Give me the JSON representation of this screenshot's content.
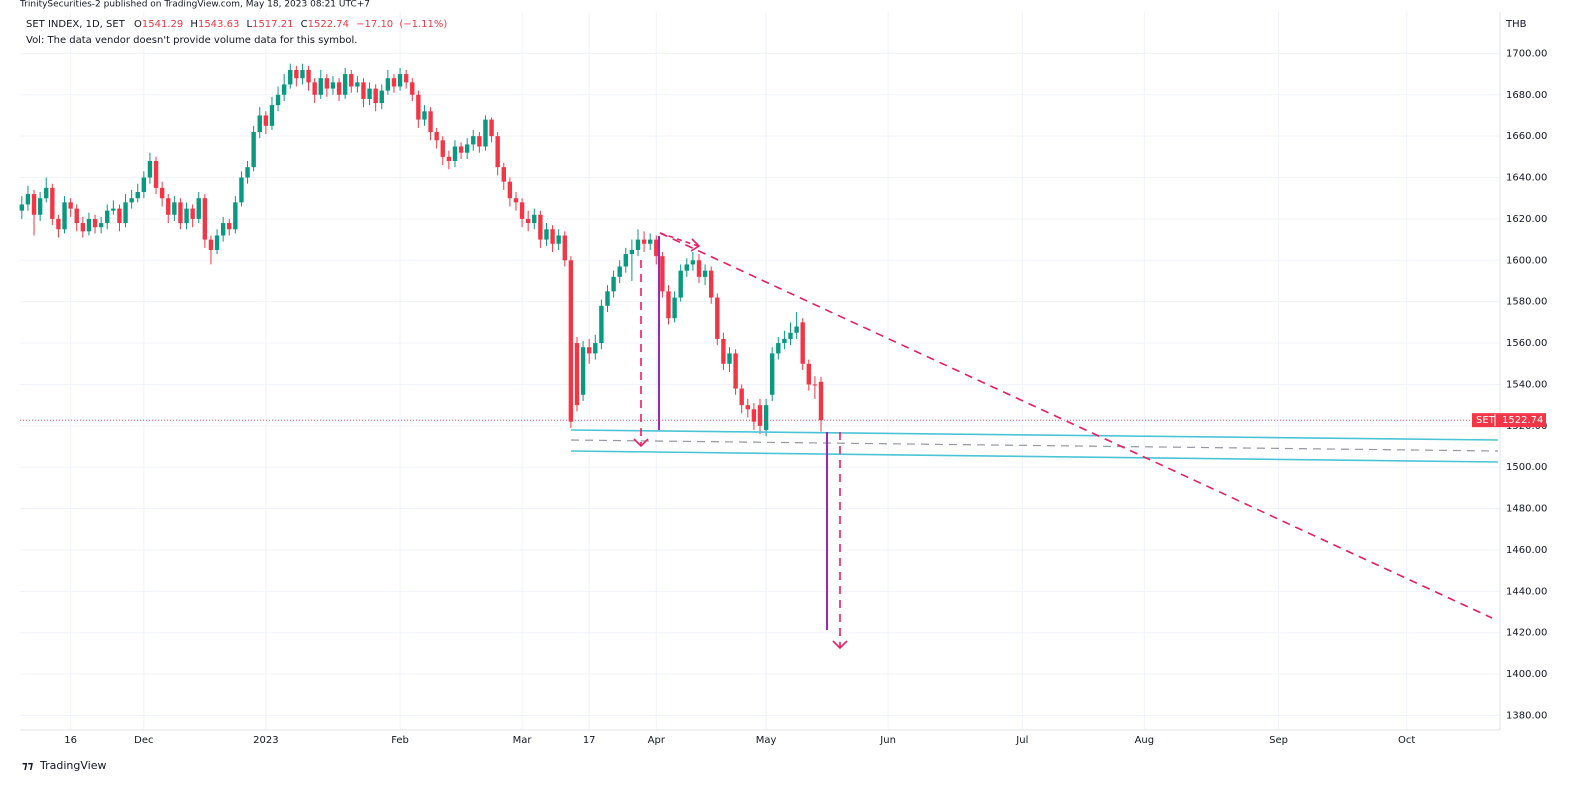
{
  "publisher": "TrinitySecurities-2 published on TradingView.com, May 18, 2023 08:21 UTC+7",
  "chart_data": {
    "type": "candlestick",
    "symbol": "SET INDEX, 1D, SET",
    "ohlc_letters": [
      "O",
      "H",
      "L",
      "C"
    ],
    "change": {
      "value": -17.1,
      "label": "−17.10"
    },
    "change_pct": {
      "value": -1.11,
      "label": "(−1.11%)"
    },
    "volume_note": "Vol: The data vendor doesn't provide volume data for this symbol.",
    "currency": "THB",
    "symbol_short": "SET",
    "up_color": "#089981",
    "down_color": "#f23645",
    "grid": true,
    "xlim": [
      -0.3,
      242.3
    ],
    "xticks": [
      {
        "value": 8,
        "label": "16"
      },
      {
        "value": 20,
        "label": "Dec"
      },
      {
        "value": 40,
        "label": "2023"
      },
      {
        "value": 62,
        "label": "Feb"
      },
      {
        "value": 82,
        "label": "Mar"
      },
      {
        "value": 93,
        "label": "17"
      },
      {
        "value": 104,
        "label": "Apr"
      },
      {
        "value": 122,
        "label": "May"
      },
      {
        "value": 142,
        "label": "Jun"
      },
      {
        "value": 164,
        "label": "Jul"
      },
      {
        "value": 184,
        "label": "Aug"
      },
      {
        "value": 206,
        "label": "Sep"
      },
      {
        "value": 227,
        "label": "Oct"
      }
    ],
    "ylim": [
      1373,
      1720
    ],
    "yticks": [
      {
        "value": 1380,
        "label": "1380.00"
      },
      {
        "value": 1400,
        "label": "1400.00"
      },
      {
        "value": 1420,
        "label": "1420.00"
      },
      {
        "value": 1440,
        "label": "1440.00"
      },
      {
        "value": 1460,
        "label": "1460.00"
      },
      {
        "value": 1480,
        "label": "1480.00"
      },
      {
        "value": 1500,
        "label": "1500.00"
      },
      {
        "value": 1520,
        "label": "1520.00"
      },
      {
        "value": 1540,
        "label": "1540.00"
      },
      {
        "value": 1560,
        "label": "1560.00"
      },
      {
        "value": 1580,
        "label": "1580.00"
      },
      {
        "value": 1600,
        "label": "1600.00"
      },
      {
        "value": 1620,
        "label": "1620.00"
      },
      {
        "value": 1640,
        "label": "1640.00"
      },
      {
        "value": 1660,
        "label": "1660.00"
      },
      {
        "value": 1680,
        "label": "1680.00"
      },
      {
        "value": 1700,
        "label": "1700.00"
      }
    ],
    "open": [
      1624,
      1627,
      1632,
      1622,
      1630,
      1635,
      1620,
      1615,
      1628,
      1625,
      1618,
      1614,
      1620,
      1616,
      1618,
      1624,
      1625,
      1618,
      1628,
      1630,
      1633,
      1640,
      1648,
      1635,
      1630,
      1622,
      1628,
      1618,
      1625,
      1620,
      1630,
      1610,
      1605,
      1612,
      1618,
      1615,
      1628,
      1640,
      1645,
      1662,
      1670,
      1665,
      1675,
      1680,
      1685,
      1692,
      1688,
      1692,
      1686,
      1680,
      1688,
      1683,
      1686,
      1680,
      1690,
      1684,
      1686,
      1678,
      1683,
      1676,
      1682,
      1688,
      1684,
      1690,
      1686,
      1680,
      1668,
      1672,
      1662,
      1658,
      1650,
      1648,
      1655,
      1652,
      1656,
      1660,
      1655,
      1668,
      1660,
      1645,
      1638,
      1630,
      1628,
      1620,
      1618,
      1622,
      1610,
      1615,
      1608,
      1612,
      1600,
      1560,
      1535,
      1558,
      1555,
      1560,
      1578,
      1585,
      1592,
      1597,
      1603,
      1605,
      1610,
      1608,
      1610,
      1602,
      1585,
      1572,
      1582,
      1595,
      1598,
      1600,
      1592,
      1595,
      1582,
      1562,
      1550,
      1555,
      1538,
      1530,
      1528,
      1530,
      1518,
      1535,
      1555,
      1560,
      1562,
      1565,
      1570,
      1550,
      1540,
      1541.29
    ],
    "high": [
      1631,
      1636,
      1634,
      1633,
      1640,
      1637,
      1622,
      1631,
      1630,
      1627,
      1621,
      1623,
      1622,
      1621,
      1627,
      1629,
      1627,
      1632,
      1634,
      1637,
      1643,
      1652,
      1650,
      1638,
      1632,
      1631,
      1630,
      1628,
      1627,
      1633,
      1632,
      1612,
      1615,
      1621,
      1620,
      1631,
      1643,
      1648,
      1665,
      1674,
      1672,
      1679,
      1684,
      1690,
      1695,
      1694,
      1695,
      1694,
      1688,
      1692,
      1690,
      1689,
      1688,
      1693,
      1692,
      1689,
      1688,
      1686,
      1685,
      1685,
      1692,
      1690,
      1693,
      1692,
      1688,
      1682,
      1675,
      1674,
      1664,
      1660,
      1653,
      1658,
      1657,
      1659,
      1663,
      1662,
      1670,
      1669,
      1662,
      1647,
      1640,
      1633,
      1630,
      1624,
      1625,
      1624,
      1618,
      1617,
      1615,
      1614,
      1602,
      1563,
      1561,
      1562,
      1564,
      1581,
      1588,
      1595,
      1600,
      1606,
      1610,
      1615,
      1614,
      1613,
      1612,
      1604,
      1588,
      1585,
      1598,
      1601,
      1604,
      1603,
      1598,
      1597,
      1584,
      1565,
      1558,
      1557,
      1540,
      1533,
      1531,
      1533,
      1533,
      1558,
      1563,
      1566,
      1570,
      1575,
      1572,
      1552,
      1544,
      1543.63
    ],
    "low": [
      1620,
      1624,
      1612,
      1619,
      1628,
      1617,
      1611,
      1613,
      1621,
      1614,
      1611,
      1612,
      1613,
      1613,
      1615,
      1622,
      1614,
      1616,
      1625,
      1628,
      1630,
      1637,
      1632,
      1626,
      1618,
      1619,
      1615,
      1615,
      1616,
      1618,
      1606,
      1598,
      1603,
      1609,
      1612,
      1613,
      1626,
      1637,
      1643,
      1659,
      1661,
      1663,
      1672,
      1677,
      1683,
      1684,
      1685,
      1682,
      1676,
      1678,
      1679,
      1680,
      1677,
      1678,
      1681,
      1681,
      1674,
      1675,
      1672,
      1673,
      1680,
      1681,
      1682,
      1683,
      1677,
      1664,
      1665,
      1658,
      1654,
      1646,
      1644,
      1645,
      1649,
      1649,
      1653,
      1652,
      1653,
      1657,
      1641,
      1634,
      1626,
      1624,
      1616,
      1614,
      1615,
      1606,
      1607,
      1604,
      1605,
      1597,
      1519,
      1527,
      1532,
      1550,
      1552,
      1557,
      1575,
      1582,
      1589,
      1594,
      1590,
      1602,
      1604,
      1605,
      1598,
      1582,
      1569,
      1570,
      1580,
      1592,
      1595,
      1589,
      1588,
      1579,
      1559,
      1547,
      1546,
      1535,
      1526,
      1524,
      1518,
      1516,
      1515,
      1532,
      1552,
      1557,
      1559,
      1562,
      1547,
      1537,
      1533,
      1517.21
    ],
    "close": [
      1627,
      1632,
      1622,
      1630,
      1635,
      1620,
      1615,
      1628,
      1625,
      1618,
      1614,
      1620,
      1616,
      1618,
      1624,
      1625,
      1618,
      1628,
      1630,
      1633,
      1640,
      1648,
      1635,
      1630,
      1622,
      1628,
      1618,
      1625,
      1620,
      1630,
      1610,
      1605,
      1612,
      1618,
      1615,
      1628,
      1640,
      1645,
      1662,
      1670,
      1665,
      1675,
      1680,
      1685,
      1692,
      1688,
      1692,
      1686,
      1680,
      1688,
      1683,
      1686,
      1680,
      1690,
      1684,
      1686,
      1678,
      1683,
      1676,
      1682,
      1688,
      1684,
      1690,
      1686,
      1680,
      1668,
      1672,
      1662,
      1658,
      1650,
      1648,
      1655,
      1652,
      1656,
      1660,
      1655,
      1668,
      1660,
      1645,
      1638,
      1630,
      1628,
      1620,
      1618,
      1622,
      1610,
      1615,
      1608,
      1612,
      1600,
      1522,
      1530,
      1558,
      1555,
      1560,
      1578,
      1585,
      1592,
      1597,
      1603,
      1605,
      1610,
      1608,
      1610,
      1602,
      1585,
      1572,
      1582,
      1595,
      1598,
      1600,
      1592,
      1595,
      1582,
      1562,
      1550,
      1555,
      1538,
      1530,
      1528,
      1522,
      1520,
      1530,
      1555,
      1560,
      1562,
      1565,
      1568,
      1550,
      1540,
      1539.84,
      1522.74
    ]
  },
  "footer": {
    "brand": "TradingView"
  }
}
